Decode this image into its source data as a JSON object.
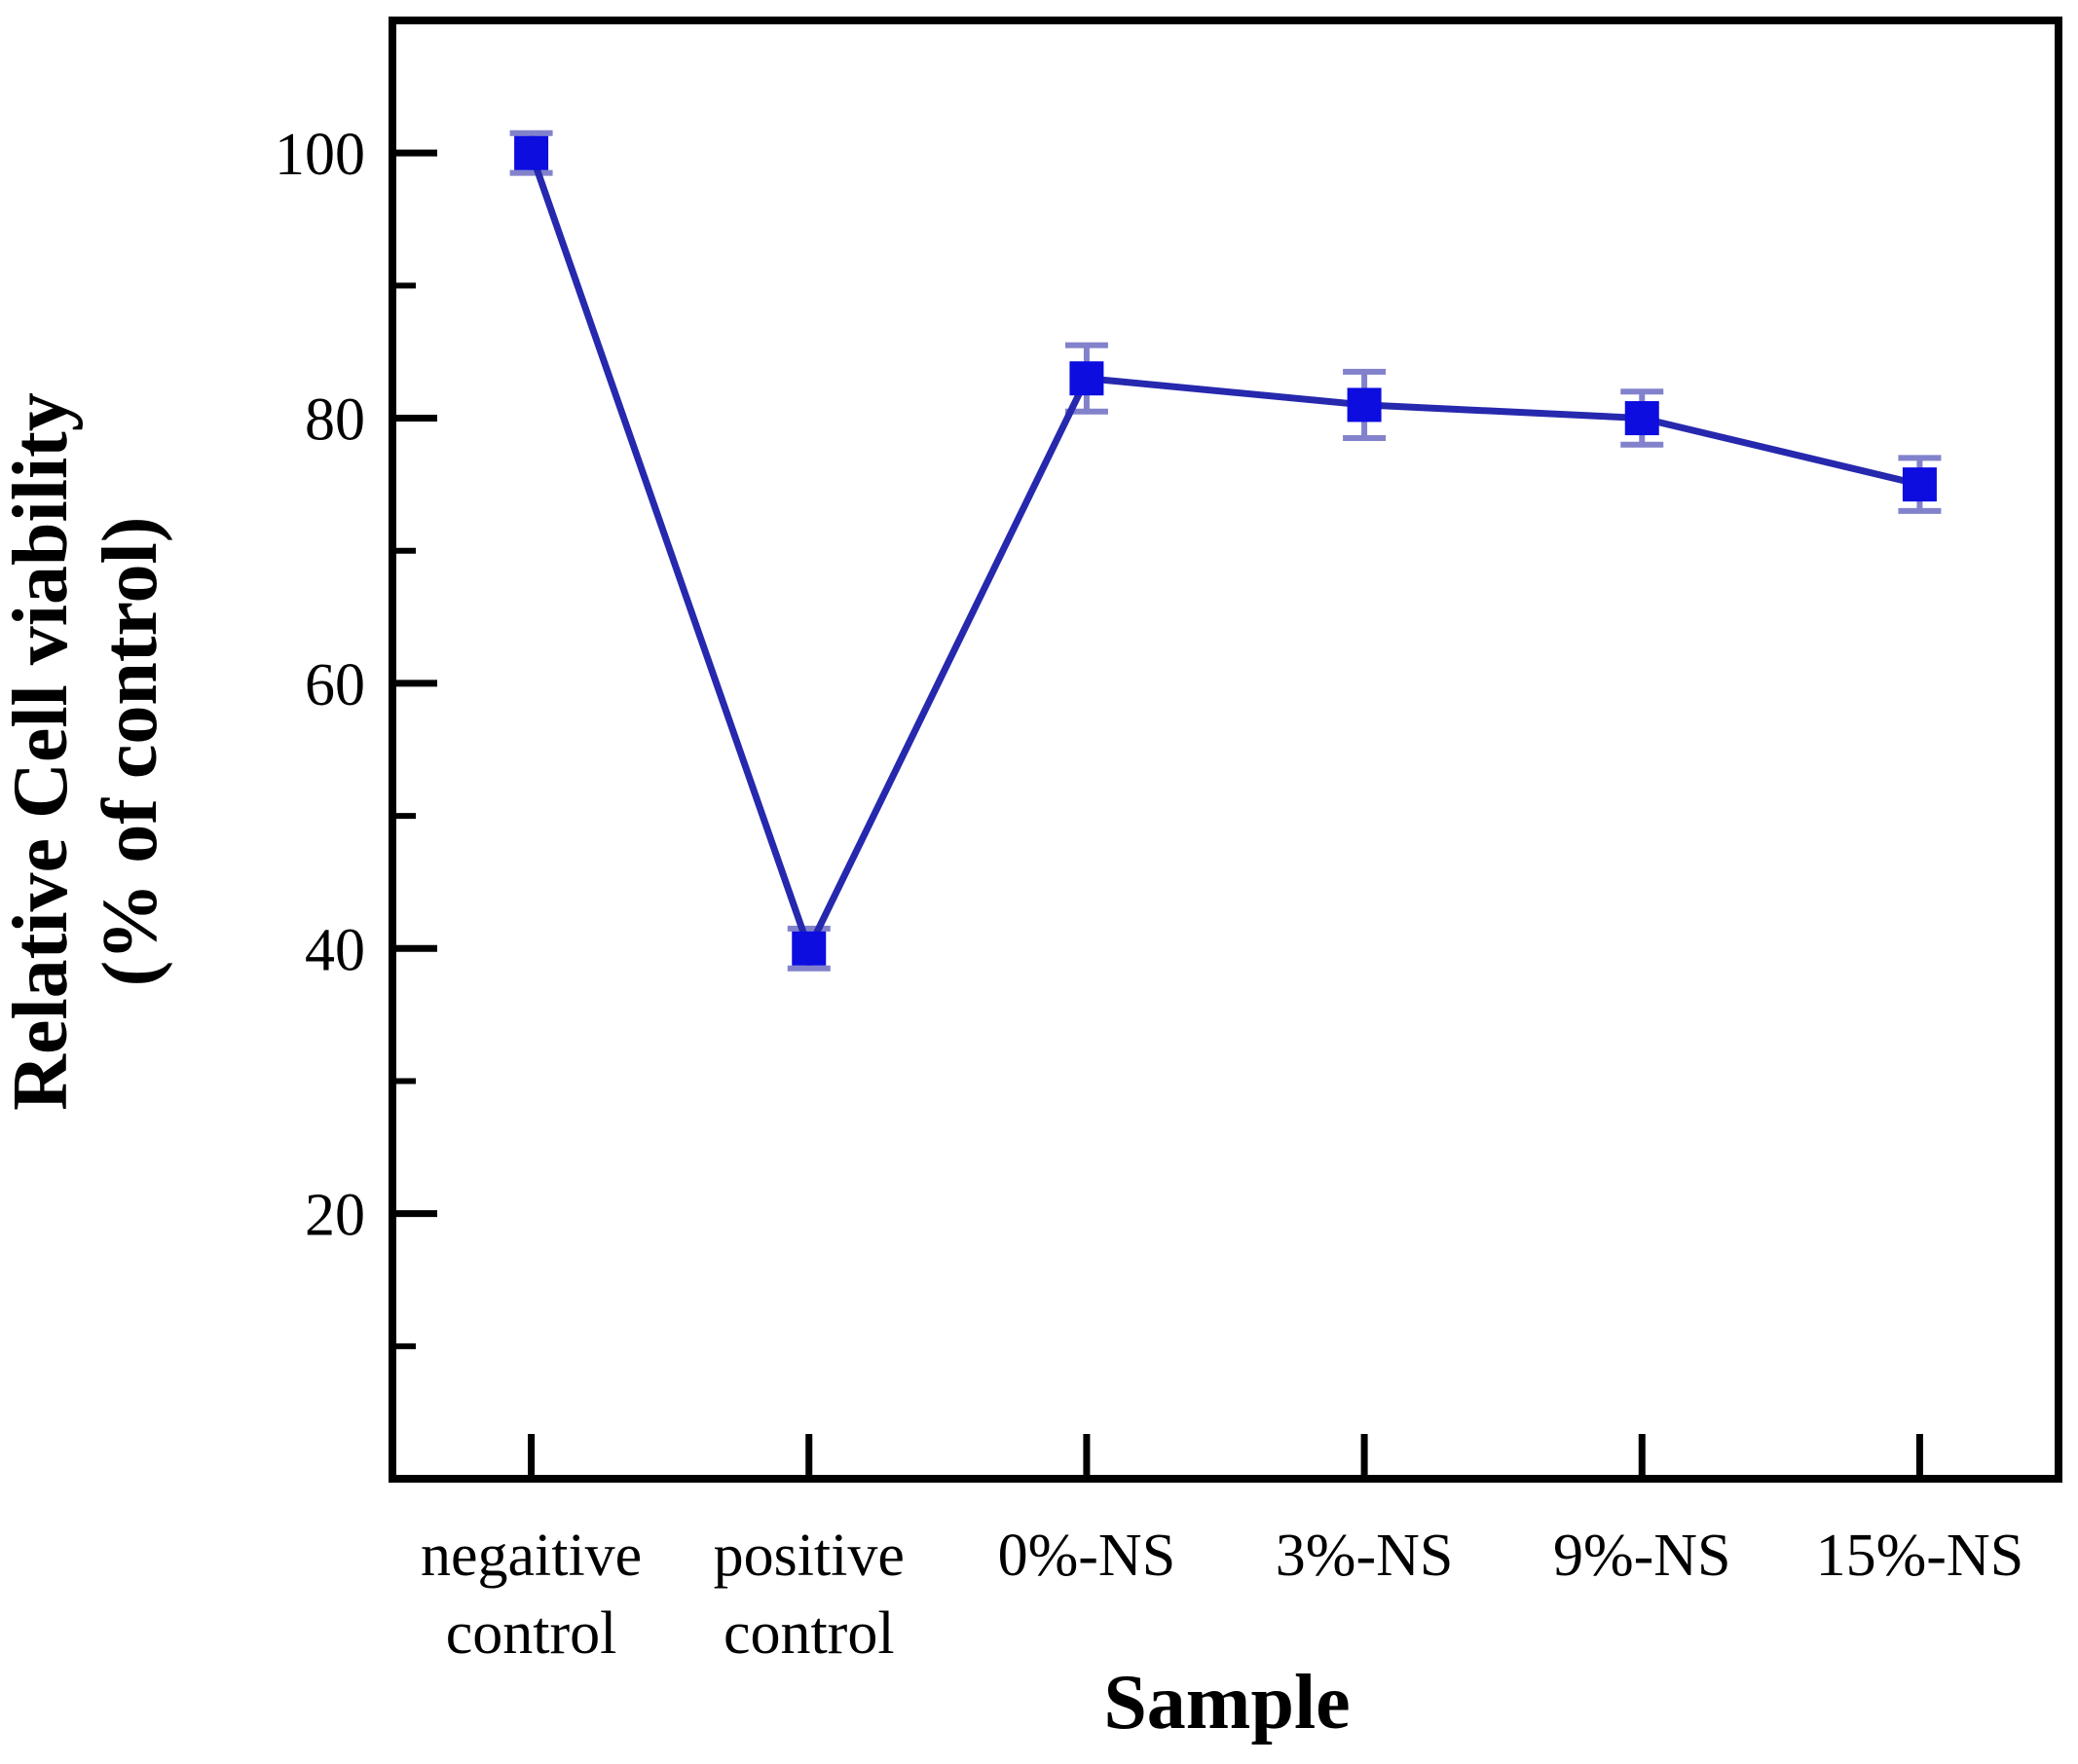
{
  "figure": {
    "background": "#ffffff"
  },
  "chart_data": {
    "type": "line",
    "title": "",
    "xlabel": "Sample",
    "ylabel_line1": "Relative Cell viability",
    "ylabel_line2": "(% of control)",
    "categories": [
      "negaitive control",
      "positive control",
      "0%-NS",
      "3%-NS",
      "9%-NS",
      "15%-NS"
    ],
    "category_label_lines": [
      [
        "negaitive",
        "control"
      ],
      [
        "positive",
        "control"
      ],
      [
        "0%-NS"
      ],
      [
        "3%-NS"
      ],
      [
        "9%-NS"
      ],
      [
        "15%-NS"
      ]
    ],
    "series": [
      {
        "name": "Relative cell viability (% of control)",
        "values": [
          100,
          40,
          83,
          81,
          80,
          75
        ],
        "errors": [
          1.5,
          1.5,
          2.5,
          2.5,
          2,
          2
        ]
      }
    ],
    "ylim": [
      0,
      110
    ],
    "yticks_major": [
      20,
      40,
      60,
      80,
      100
    ],
    "yticks_minor": [
      10,
      30,
      50,
      70,
      90
    ],
    "grid": false,
    "legend": "none",
    "marker": "square",
    "colors": {
      "marker": "#0d0de0",
      "line": "#2628ae",
      "error_bar": "#8282cc",
      "axis": "#000000",
      "background": "#ffffff"
    }
  }
}
